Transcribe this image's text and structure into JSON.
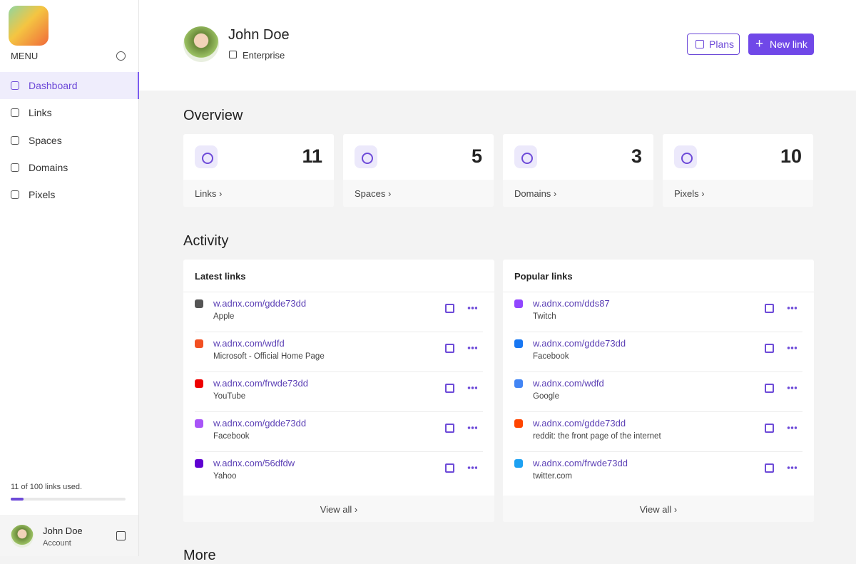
{
  "sidebar": {
    "menu_label": "MENU",
    "nav": [
      "Dashboard",
      "Links",
      "Spaces",
      "Domains",
      "Pixels"
    ],
    "usage": {
      "label": "11 of 100 links used.",
      "used": 11,
      "limit": 100
    },
    "user": {
      "name": "John Doe",
      "role": "Account"
    }
  },
  "header": {
    "name": "John Doe",
    "plan": "Enterprise",
    "buttons": [
      "Plans",
      "New link"
    ]
  },
  "overview": {
    "title": "Overview",
    "cards": [
      {
        "label": "Links",
        "count": 11
      },
      {
        "label": "Spaces",
        "count": 5
      },
      {
        "label": "Domains",
        "count": 3
      },
      {
        "label": "Pixels",
        "count": 10
      }
    ]
  },
  "activity": {
    "title": "Activity",
    "panels": [
      {
        "title": "Latest links",
        "items": [
          {
            "url": "w.adnx.com/gdde73dd",
            "name": "Apple"
          },
          {
            "url": "w.adnx.com/wdfd",
            "name": "Microsoft - Official Home Page"
          },
          {
            "url": "w.adnx.com/frwde73dd",
            "name": "YouTube"
          },
          {
            "url": "w.adnx.com/gdde73dd",
            "name": "Facebook"
          },
          {
            "url": "w.adnx.com/56dfdw",
            "name": "Yahoo"
          }
        ],
        "view_all": "View all"
      },
      {
        "title": "Popular links",
        "items": [
          {
            "url": "w.adnx.com/dds87",
            "name": "Twitch"
          },
          {
            "url": "w.adnx.com/gdde73dd",
            "name": "Facebook"
          },
          {
            "url": "w.adnx.com/wdfd",
            "name": "Google"
          },
          {
            "url": "w.adnx.com/gdde73dd",
            "name": "reddit: the front page of the internet"
          },
          {
            "url": "w.adnx.com/frwde73dd",
            "name": "twitter.com"
          }
        ],
        "view_all": "View all"
      }
    ]
  },
  "more": {
    "title": "More"
  }
}
